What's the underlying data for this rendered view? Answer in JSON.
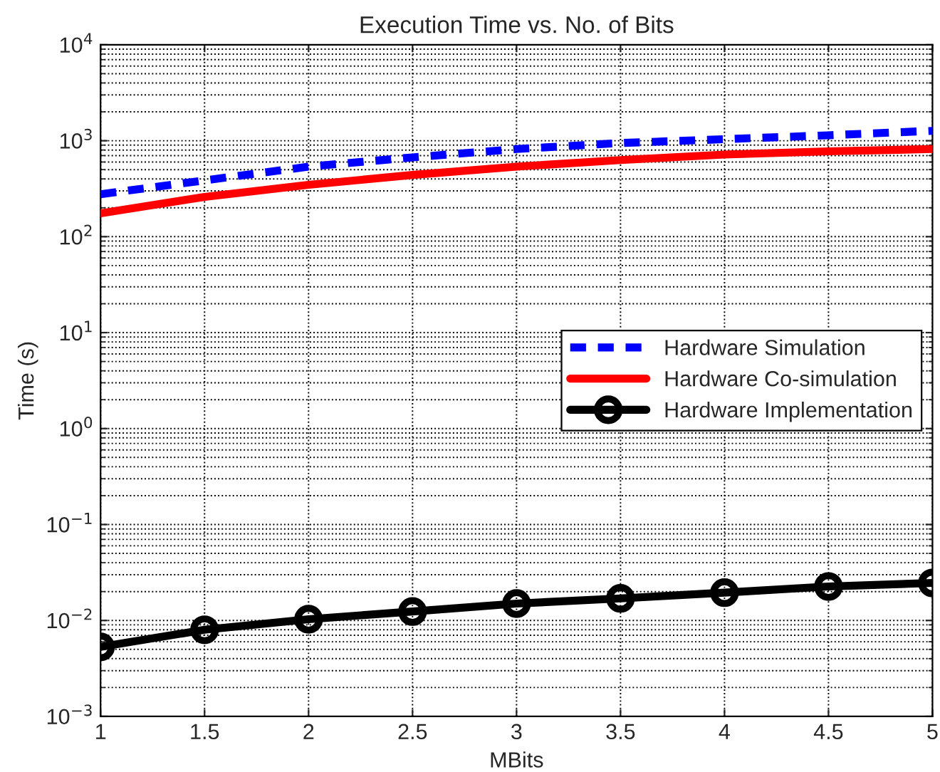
{
  "chart_data": {
    "type": "line",
    "title": "Execution Time vs. No. of Bits",
    "xlabel": "MBits",
    "ylabel": "Time (s)",
    "x": [
      1,
      1.5,
      2,
      2.5,
      3,
      3.5,
      4,
      4.5,
      5
    ],
    "series": [
      {
        "name": "Hardware Simulation",
        "color": "#0000ff",
        "line_style": "dashed",
        "marker": "none",
        "values": [
          277,
          386,
          537,
          671,
          819,
          946,
          1038,
          1140,
          1268
        ]
      },
      {
        "name": "Hardware Co-simulation",
        "color": "#ff0000",
        "line_style": "solid",
        "marker": "none",
        "values": [
          175,
          260,
          347,
          440,
          537,
          629,
          717,
          776,
          819
        ]
      },
      {
        "name": "Hardware Implementation",
        "color": "#000000",
        "line_style": "solid",
        "marker": "circle",
        "values": [
          0.0053,
          0.008,
          0.0103,
          0.0124,
          0.015,
          0.017,
          0.0195,
          0.0226,
          0.0246
        ]
      }
    ],
    "log": "y",
    "xlim": [
      1,
      5
    ],
    "xticks": [
      1,
      1.5,
      2,
      2.5,
      3,
      3.5,
      4,
      4.5,
      5
    ],
    "ylim": [
      0.001,
      10000
    ],
    "yticks": [
      {
        "value": 0.001,
        "label": "10$^{−3}$"
      },
      {
        "value": 0.01,
        "label": "10$^{−2}$"
      },
      {
        "value": 0.1,
        "label": "10$^{−1}$"
      },
      {
        "value": 1,
        "label": "10$^{0}$"
      },
      {
        "value": 10,
        "label": "10$^{1}$"
      },
      {
        "value": 100,
        "label": "10$^{2}$"
      },
      {
        "value": 1000,
        "label": "10$^{3}$"
      },
      {
        "value": 10000,
        "label": "10$^{4}$"
      }
    ],
    "grid": true,
    "legend": "right"
  }
}
